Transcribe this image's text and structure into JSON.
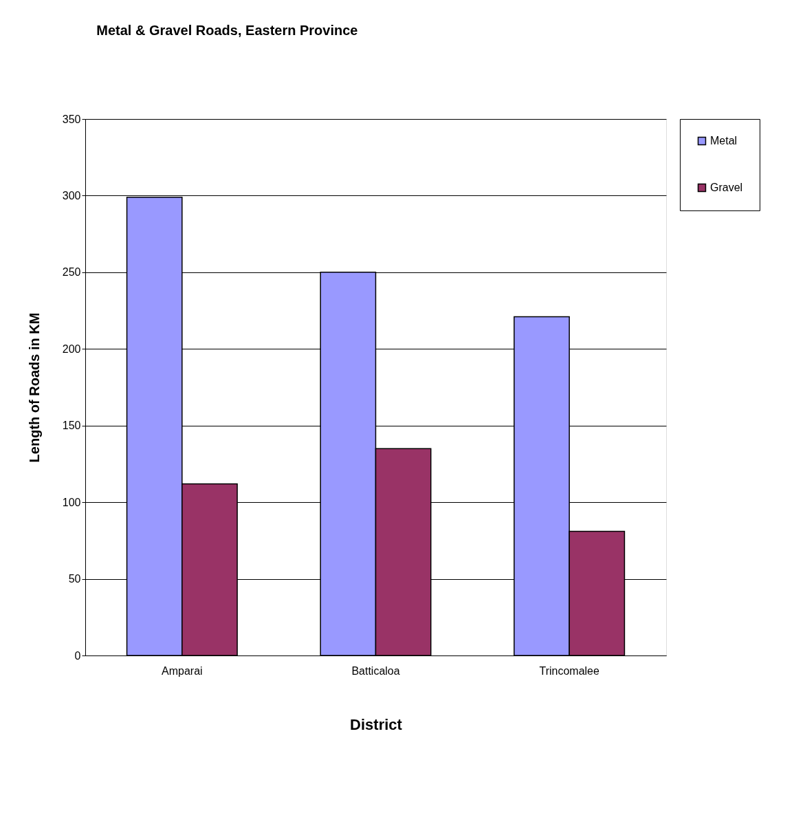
{
  "chart_data": {
    "type": "bar",
    "title": "Metal & Gravel Roads, Eastern Province",
    "xlabel": "District",
    "ylabel": "Length of Roads in KM",
    "categories": [
      "Amparai",
      "Batticaloa",
      "Trincomalee"
    ],
    "series": [
      {
        "name": "Metal",
        "color": "#9999ff",
        "values": [
          299,
          250,
          221
        ]
      },
      {
        "name": "Gravel",
        "color": "#993366",
        "values": [
          112,
          135,
          81
        ]
      }
    ],
    "ylim": [
      0,
      350
    ],
    "yticks": [
      0,
      50,
      100,
      150,
      200,
      250,
      300,
      350
    ],
    "grid": "y",
    "legend": "right"
  }
}
